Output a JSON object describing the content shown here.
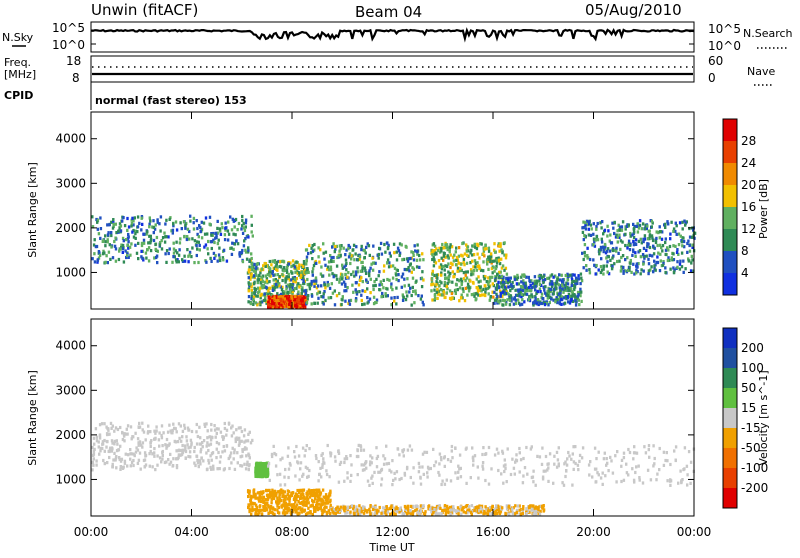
{
  "header": {
    "station": "Unwin (fitACF)",
    "beam": "Beam 04",
    "date": "05/Aug/2010"
  },
  "noise_panel": {
    "left_label": "N.Sky",
    "right_label": "N.Search",
    "top_tick_left": "10^5",
    "bottom_tick_left": "10^0",
    "top_tick_right": "10^5",
    "bottom_tick_right": "10^0"
  },
  "freq_panel": {
    "left_label_line1": "Freq.",
    "left_label_line2": "[MHz]",
    "left_ticks": [
      "18",
      "8"
    ],
    "right_label": "Nave",
    "right_ticks": [
      "60",
      "0"
    ]
  },
  "cpid": {
    "label": "CPID",
    "mode": "normal (fast stereo) 153"
  },
  "colors": {
    "power": [
      "#1030e0",
      "#2050c0",
      "#2f8a55",
      "#60b060",
      "#f2c000",
      "#f08a00",
      "#e84000",
      "#e00000"
    ],
    "velocity_neg": [
      "#c8c8c8",
      "#f0a000",
      "#f07000",
      "#e84000",
      "#e00000"
    ],
    "velocity_pos": [
      "#c8c8c8",
      "#60c040",
      "#2f8a55",
      "#2050a0",
      "#1030c0"
    ]
  },
  "chart_data": [
    {
      "type": "heatmap",
      "title": "",
      "ylabel": "Slant Range [km]",
      "xlabel": "",
      "ylim": [
        180,
        4600
      ],
      "yticks": [
        "1000",
        "2000",
        "3000",
        "4000"
      ],
      "xlim": [
        "00:00",
        "24:00"
      ],
      "colorbar": {
        "label": "Power [dB]",
        "min": 0,
        "max": 32,
        "ticks": [
          "4",
          "8",
          "12",
          "16",
          "20",
          "24",
          "28"
        ]
      },
      "echo_regions": [
        {
          "t_start": 0.0,
          "t_end": 6.4,
          "range_start": 1250,
          "range_end": 2300,
          "mean_db": 8
        },
        {
          "t_start": 6.2,
          "t_end": 8.6,
          "range_start": 300,
          "range_end": 1300,
          "mean_db": 12
        },
        {
          "t_start": 7.0,
          "t_end": 8.5,
          "range_start": 250,
          "range_end": 500,
          "mean_db": 28
        },
        {
          "t_start": 8.5,
          "t_end": 13.2,
          "range_start": 300,
          "range_end": 1700,
          "mean_db": 10
        },
        {
          "t_start": 13.5,
          "t_end": 16.5,
          "range_start": 400,
          "range_end": 1700,
          "mean_db": 14
        },
        {
          "t_start": 16.0,
          "t_end": 19.5,
          "range_start": 300,
          "range_end": 1000,
          "mean_db": 8
        },
        {
          "t_start": 19.5,
          "t_end": 24.0,
          "range_start": 1000,
          "range_end": 2200,
          "mean_db": 8
        }
      ]
    },
    {
      "type": "heatmap",
      "title": "",
      "ylabel": "Slant Range [km]",
      "xlabel": "Time UT",
      "ylim": [
        180,
        4600
      ],
      "yticks": [
        "1000",
        "2000",
        "3000",
        "4000"
      ],
      "xticks": [
        "00:00",
        "04:00",
        "08:00",
        "12:00",
        "16:00",
        "20:00",
        "00:00"
      ],
      "colorbar": {
        "label": "Velocity [m s^-1]",
        "ticks": [
          "200",
          "100",
          "50",
          "15",
          "-15",
          "-50",
          "-100",
          "-200"
        ]
      },
      "echo_regions": [
        {
          "t_start": 0.0,
          "t_end": 6.4,
          "range_start": 1250,
          "range_end": 2300,
          "velocity": 0
        },
        {
          "t_start": 6.2,
          "t_end": 9.5,
          "range_start": 250,
          "range_end": 800,
          "velocity": -50
        },
        {
          "t_start": 6.5,
          "t_end": 7.0,
          "range_start": 1100,
          "range_end": 1400,
          "velocity": 40
        },
        {
          "t_start": 7.0,
          "t_end": 24.0,
          "range_start": 900,
          "range_end": 1800,
          "velocity": 0
        },
        {
          "t_start": 9.5,
          "t_end": 18.0,
          "range_start": 250,
          "range_end": 450,
          "velocity": -20
        }
      ]
    }
  ]
}
